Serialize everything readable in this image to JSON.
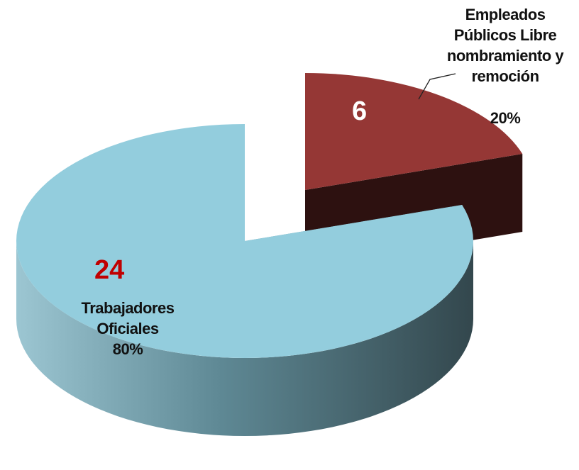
{
  "chart_data": {
    "type": "pie",
    "categories": [
      "Empleados Públicos Libre nombramiento y remoción",
      "Trabajadores Oficiales"
    ],
    "values": [
      6,
      24
    ],
    "percent_labels": [
      "20%",
      "80%"
    ],
    "colors": [
      "#953735",
      "#93cddd"
    ],
    "explode": [
      true,
      false
    ]
  }
}
